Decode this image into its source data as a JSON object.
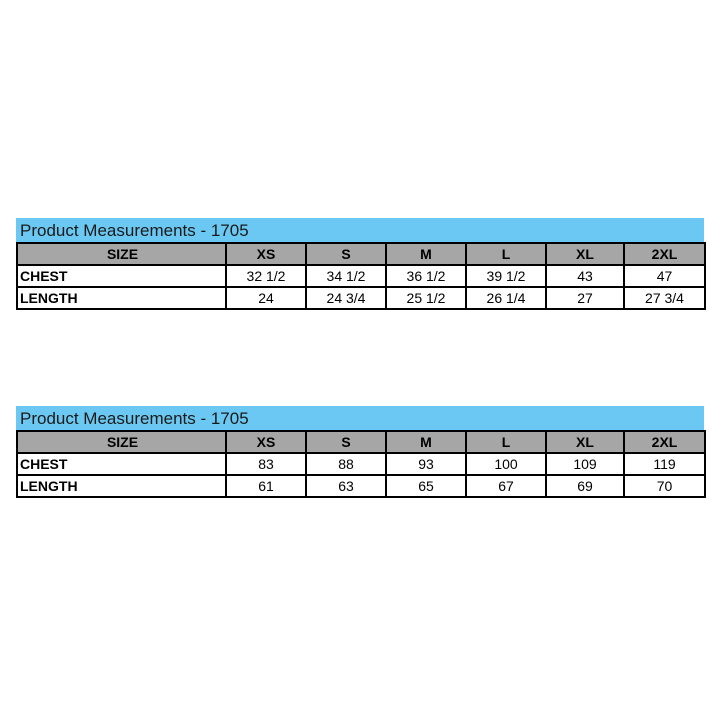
{
  "tables": [
    {
      "title": "Product Measurements - 1705",
      "header": [
        "SIZE",
        "XS",
        "S",
        "M",
        "L",
        "XL",
        "2XL"
      ],
      "rows": [
        [
          "CHEST",
          "32 1/2",
          "34 1/2",
          "36 1/2",
          "39 1/2",
          "43",
          "47"
        ],
        [
          "LENGTH",
          "24",
          "24 3/4",
          "25 1/2",
          "26 1/4",
          "27",
          "27 3/4"
        ]
      ]
    },
    {
      "title": "Product Measurements - 1705",
      "header": [
        "SIZE",
        "XS",
        "S",
        "M",
        "L",
        "XL",
        "2XL"
      ],
      "rows": [
        [
          "CHEST",
          "83",
          "88",
          "93",
          "100",
          "109",
          "119"
        ],
        [
          "LENGTH",
          "61",
          "63",
          "65",
          "67",
          "69",
          "70"
        ]
      ]
    }
  ],
  "colors": {
    "title_band": "#6bc8f2",
    "header_bg": "#a6a6a6"
  }
}
